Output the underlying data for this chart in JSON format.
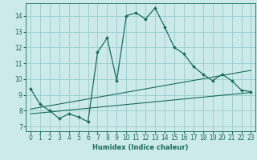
{
  "xlabel": "Humidex (Indice chaleur)",
  "background_color": "#cceaea",
  "grid_color": "#99cccc",
  "line_color": "#1a6b5a",
  "xlim": [
    -0.5,
    23.5
  ],
  "ylim": [
    6.7,
    14.8
  ],
  "xticks": [
    0,
    1,
    2,
    3,
    4,
    5,
    6,
    7,
    8,
    9,
    10,
    11,
    12,
    13,
    14,
    15,
    16,
    17,
    18,
    19,
    20,
    21,
    22,
    23
  ],
  "yticks": [
    7,
    8,
    9,
    10,
    11,
    12,
    13,
    14
  ],
  "main_x": [
    0,
    1,
    2,
    3,
    4,
    5,
    6,
    7,
    8,
    9,
    10,
    11,
    12,
    13,
    14,
    15,
    16,
    17,
    18,
    19,
    20,
    21,
    22,
    23
  ],
  "main_y": [
    9.4,
    8.4,
    8.0,
    7.5,
    7.8,
    7.6,
    7.3,
    11.7,
    12.6,
    9.9,
    14.0,
    14.2,
    13.8,
    14.5,
    13.3,
    12.0,
    11.6,
    10.8,
    10.3,
    9.9,
    10.3,
    9.9,
    9.3,
    9.2
  ],
  "trend1_x": [
    0,
    23
  ],
  "trend1_y": [
    8.1,
    10.55
  ],
  "trend2_x": [
    0,
    23
  ],
  "trend2_y": [
    7.8,
    9.15
  ]
}
